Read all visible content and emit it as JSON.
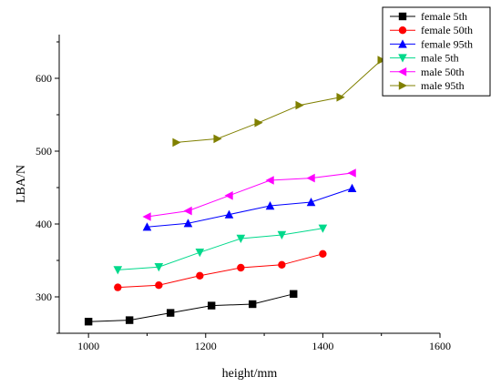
{
  "chart_data": {
    "type": "line",
    "xlabel": "height/mm",
    "ylabel": "LBA/N",
    "xlim": [
      950,
      1600
    ],
    "ylim": [
      250,
      660
    ],
    "x_ticks": [
      1000,
      1200,
      1400,
      1600
    ],
    "y_ticks": [
      300,
      400,
      500,
      600
    ],
    "grid": false,
    "legend_position": "top-right",
    "series": [
      {
        "name": "female 5th",
        "color": "#000000",
        "marker": "square",
        "x": [
          1000,
          1070,
          1140,
          1210,
          1280,
          1350
        ],
        "y": [
          266,
          268,
          278,
          288,
          290,
          304
        ]
      },
      {
        "name": "female 50th",
        "color": "#ff0000",
        "marker": "circle",
        "x": [
          1050,
          1120,
          1190,
          1260,
          1330,
          1400
        ],
        "y": [
          313,
          316,
          329,
          340,
          344,
          359
        ]
      },
      {
        "name": "female 95th",
        "color": "#0000ff",
        "marker": "triangle-up",
        "x": [
          1100,
          1170,
          1240,
          1310,
          1380,
          1450
        ],
        "y": [
          396,
          401,
          413,
          425,
          430,
          449
        ]
      },
      {
        "name": "male 5th",
        "color": "#00d98b",
        "marker": "triangle-down",
        "x": [
          1050,
          1120,
          1190,
          1260,
          1330,
          1400
        ],
        "y": [
          337,
          341,
          361,
          380,
          385,
          394
        ]
      },
      {
        "name": "male 50th",
        "color": "#ff00ff",
        "marker": "triangle-left",
        "x": [
          1100,
          1170,
          1240,
          1310,
          1380,
          1450
        ],
        "y": [
          410,
          418,
          439,
          460,
          463,
          470
        ]
      },
      {
        "name": "male 95th",
        "color": "#808000",
        "marker": "triangle-right",
        "x": [
          1150,
          1220,
          1290,
          1360,
          1430,
          1500
        ],
        "y": [
          512,
          517,
          539,
          563,
          574,
          625
        ]
      }
    ]
  }
}
